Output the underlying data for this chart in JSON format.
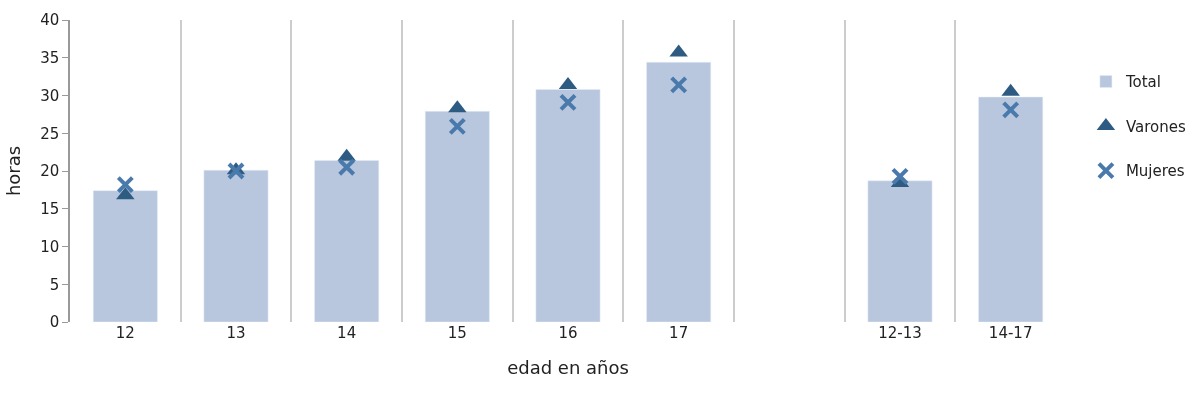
{
  "chart_data": {
    "type": "bar",
    "xlabel": "edad en años",
    "ylabel": "horas",
    "categories": [
      "12",
      "13",
      "14",
      "15",
      "16",
      "17",
      null,
      "12-13",
      "14-17"
    ],
    "series": [
      {
        "name": "Total",
        "color": "#b8c7de",
        "values": [
          17.4,
          20.1,
          21.4,
          27.9,
          30.8,
          34.4,
          null,
          18.7,
          29.8
        ]
      },
      {
        "name": "Varones",
        "type": "scatter",
        "marker": "triangle",
        "color": "#2e5b82",
        "values": [
          16.8,
          20.1,
          21.9,
          28.3,
          31.4,
          35.7,
          null,
          18.4,
          30.5
        ]
      },
      {
        "name": "Mujeres",
        "type": "scatter",
        "marker": "cross",
        "color": "#4a7aac",
        "values": [
          18.2,
          20.0,
          20.5,
          25.9,
          29.1,
          31.4,
          null,
          19.3,
          28.1
        ]
      }
    ],
    "ylim": [
      0,
      40
    ],
    "yticks": [
      0,
      5,
      10,
      15,
      20,
      25,
      30,
      35,
      40
    ],
    "grid": "x",
    "legend": "right"
  }
}
